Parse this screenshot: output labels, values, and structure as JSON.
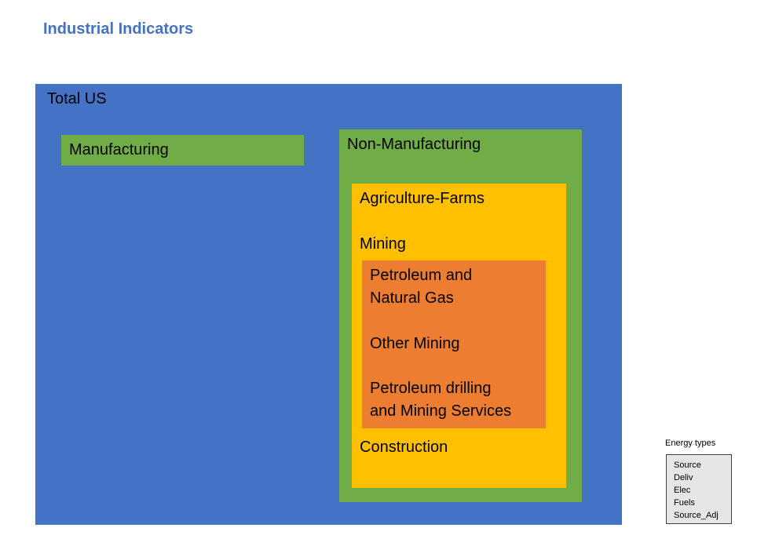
{
  "title": "Industrial Indicators",
  "boxes": {
    "total": "Total US",
    "manufacturing": "Manufacturing",
    "non_manufacturing": "Non-Manufacturing",
    "agriculture": "Agriculture-Farms",
    "mining": "Mining",
    "petroleum_line1": "Petroleum and",
    "petroleum_line2": "Natural Gas",
    "other_mining": "Other Mining",
    "drilling_line1": "Petroleum drilling",
    "drilling_line2": "and Mining Services",
    "construction": "Construction"
  },
  "legend": {
    "title": "Energy types",
    "items": [
      "Source",
      "Deliv",
      "Elec",
      "Fuels",
      "Source_Adj"
    ]
  },
  "colors": {
    "title": "#4472c4",
    "total": "#4472c4",
    "manufacturing": "#70ad47",
    "non_manufacturing": "#70ad47",
    "non_mining_sectors": "#ffc000",
    "mining_sectors": "#ed7d31",
    "legend_background": "#e7e6e6"
  }
}
